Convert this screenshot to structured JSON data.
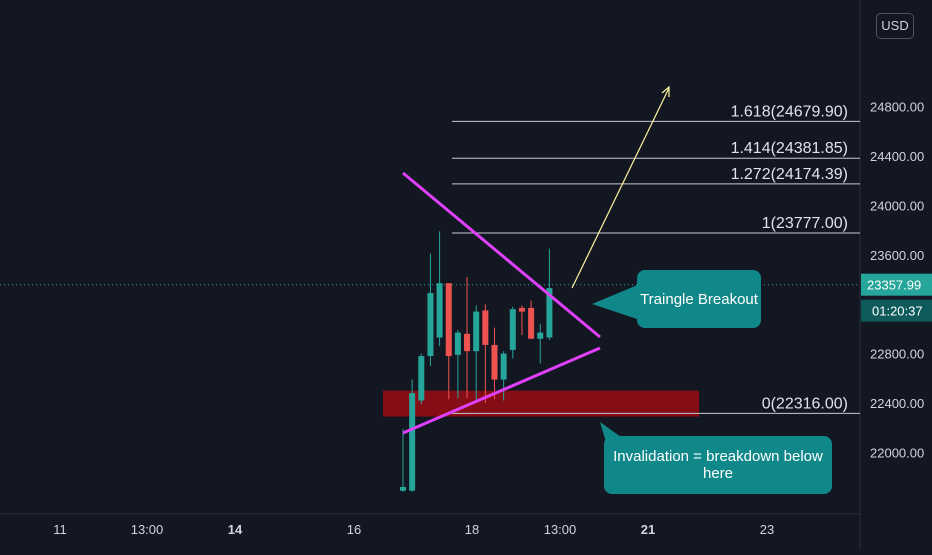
{
  "chart_data": {
    "type": "candlestick",
    "currency": "USD",
    "x_tick_labels": [
      "11",
      "13:00",
      "14",
      "16",
      "18",
      "13:00",
      "21",
      "23"
    ],
    "bold_x_ticks": [
      "14",
      "21"
    ],
    "y_tick_labels": [
      "22000.00",
      "22400.00",
      "22800.00",
      "23600.00",
      "24000.00",
      "24400.00"
    ],
    "ylim": [
      21650,
      24850
    ],
    "current_price": "23357.99",
    "countdown": "01:20:37",
    "colors": {
      "up": "#26a69a",
      "down": "#ef5350",
      "pattern": "#e040fb",
      "arrow": "#fff59d",
      "callout": "#10888a",
      "zone": "#8b0d16",
      "price_line": "#26a69a",
      "fib": "#c8cad1"
    },
    "fib_levels": [
      {
        "label": "1.618(24679.90)",
        "value": 24679.9
      },
      {
        "label": "1.414(24381.85)",
        "value": 24381.85
      },
      {
        "label": "1.272(24174.39)",
        "value": 24174.39
      },
      {
        "label": "1(23777.00)",
        "value": 23777.0
      },
      {
        "label": "0(22316.00)",
        "value": 22316.0
      }
    ],
    "candles": [
      {
        "o": 21690,
        "h": 22190,
        "l": 21680,
        "c": 21720
      },
      {
        "o": 21690,
        "h": 22590,
        "l": 21680,
        "c": 22480
      },
      {
        "o": 22420,
        "h": 22800,
        "l": 22390,
        "c": 22780
      },
      {
        "o": 22780,
        "h": 23610,
        "l": 22700,
        "c": 23290
      },
      {
        "o": 22930,
        "h": 23790,
        "l": 22860,
        "c": 23370
      },
      {
        "o": 23370,
        "h": 23370,
        "l": 22430,
        "c": 22780
      },
      {
        "o": 22790,
        "h": 22990,
        "l": 22440,
        "c": 22970
      },
      {
        "o": 22960,
        "h": 23420,
        "l": 22440,
        "c": 22820
      },
      {
        "o": 22820,
        "h": 23190,
        "l": 22400,
        "c": 23140
      },
      {
        "o": 23150,
        "h": 23200,
        "l": 22400,
        "c": 22870
      },
      {
        "o": 22870,
        "h": 23010,
        "l": 22430,
        "c": 22590
      },
      {
        "o": 22590,
        "h": 22820,
        "l": 22420,
        "c": 22800
      },
      {
        "o": 22830,
        "h": 23180,
        "l": 22760,
        "c": 23160
      },
      {
        "o": 23170,
        "h": 23190,
        "l": 22950,
        "c": 23140
      },
      {
        "o": 23170,
        "h": 23230,
        "l": 22950,
        "c": 22920
      },
      {
        "o": 22920,
        "h": 23040,
        "l": 22720,
        "c": 22970
      },
      {
        "o": 22930,
        "h": 23650,
        "l": 22910,
        "c": 23330
      }
    ],
    "support_zone": {
      "low": 22290,
      "high": 22500
    },
    "callouts": {
      "breakout": "Traingle Breakout",
      "invalidation": "Invalidation = breakdown below here"
    }
  }
}
